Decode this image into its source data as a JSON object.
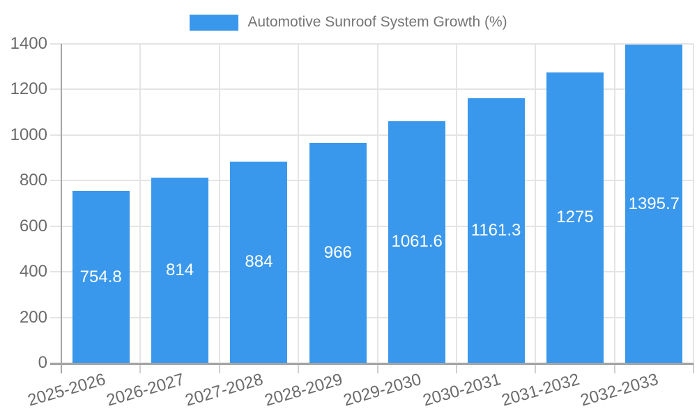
{
  "chart_data": {
    "type": "bar",
    "title": "Automotive Sunroof System Growth (%)",
    "legend_position": "top-center",
    "categories": [
      "2025-2026",
      "2026-2027",
      "2027-2028",
      "2028-2029",
      "2029-2030",
      "2030-2031",
      "2031-2032",
      "2032-2033"
    ],
    "values": [
      754.8,
      814,
      884,
      966,
      1061.6,
      1161.3,
      1275,
      1395.7
    ],
    "value_labels": [
      "754.8",
      "814",
      "884",
      "966",
      "1061.6",
      "1161.3",
      "1275",
      "1395.7"
    ],
    "xlabel": "",
    "ylabel": "",
    "ylim": [
      0,
      1400
    ],
    "yticks": [
      "0",
      "200",
      "400",
      "600",
      "800",
      "1000",
      "1200",
      "1400"
    ],
    "grid": true,
    "colors": {
      "bar": "#3a98ec",
      "bar_value_text": "#ffffff",
      "axis_text": "#6b6b6b",
      "legend_text": "#757575",
      "gridline": "#e4e4e4",
      "axis_line": "#a6a6a6",
      "background": "#ffffff"
    }
  }
}
